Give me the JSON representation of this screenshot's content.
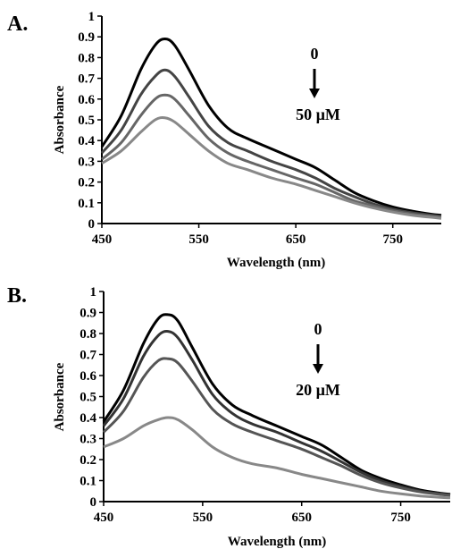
{
  "chart_data": [
    {
      "type": "line",
      "panel_label": "A.",
      "xlabel": "Wavelength (nm)",
      "ylabel": "Absorbance",
      "xlim": [
        450,
        800
      ],
      "ylim": [
        0,
        1
      ],
      "x_ticks": [
        "450",
        "550",
        "650",
        "750"
      ],
      "y_ticks": [
        "0",
        "0.1",
        "0.2",
        "0.3",
        "0.4",
        "0.5",
        "0.6",
        "0.7",
        "0.8",
        "0.9",
        "1"
      ],
      "grid": false,
      "annotation_top": "0",
      "annotation_bottom": "50 µM",
      "x": [
        450,
        470,
        490,
        505,
        515,
        525,
        540,
        560,
        580,
        600,
        625,
        650,
        670,
        690,
        710,
        730,
        750,
        770,
        790,
        800
      ],
      "series": [
        {
          "color": "#000000",
          "values": [
            0.37,
            0.52,
            0.74,
            0.86,
            0.89,
            0.86,
            0.74,
            0.57,
            0.46,
            0.41,
            0.36,
            0.31,
            0.27,
            0.21,
            0.15,
            0.11,
            0.08,
            0.06,
            0.045,
            0.04
          ]
        },
        {
          "color": "#444444",
          "values": [
            0.34,
            0.45,
            0.62,
            0.71,
            0.74,
            0.71,
            0.61,
            0.47,
            0.39,
            0.35,
            0.3,
            0.26,
            0.22,
            0.17,
            0.13,
            0.095,
            0.07,
            0.052,
            0.04,
            0.035
          ]
        },
        {
          "color": "#666666",
          "values": [
            0.31,
            0.39,
            0.52,
            0.6,
            0.62,
            0.6,
            0.52,
            0.41,
            0.34,
            0.3,
            0.26,
            0.22,
            0.19,
            0.15,
            0.11,
            0.085,
            0.062,
            0.046,
            0.035,
            0.03
          ]
        },
        {
          "color": "#888888",
          "values": [
            0.29,
            0.35,
            0.44,
            0.5,
            0.51,
            0.49,
            0.43,
            0.35,
            0.29,
            0.26,
            0.22,
            0.19,
            0.16,
            0.13,
            0.1,
            0.075,
            0.055,
            0.04,
            0.03,
            0.025
          ]
        }
      ]
    },
    {
      "type": "line",
      "panel_label": "B.",
      "xlabel": "Wavelength (nm)",
      "ylabel": "Absorbance",
      "xlim": [
        450,
        800
      ],
      "ylim": [
        0,
        1
      ],
      "x_ticks": [
        "450",
        "550",
        "650",
        "750"
      ],
      "y_ticks": [
        "0",
        "0.1",
        "0.2",
        "0.3",
        "0.4",
        "0.5",
        "0.6",
        "0.7",
        "0.8",
        "0.9",
        "1"
      ],
      "grid": false,
      "annotation_top": "0",
      "annotation_bottom": "20 µM",
      "x": [
        450,
        470,
        490,
        505,
        515,
        525,
        540,
        560,
        580,
        600,
        625,
        650,
        670,
        690,
        710,
        730,
        750,
        770,
        790,
        800
      ],
      "series": [
        {
          "color": "#000000",
          "values": [
            0.38,
            0.53,
            0.75,
            0.87,
            0.89,
            0.86,
            0.73,
            0.56,
            0.46,
            0.41,
            0.36,
            0.31,
            0.27,
            0.21,
            0.15,
            0.11,
            0.08,
            0.055,
            0.04,
            0.035
          ]
        },
        {
          "color": "#333333",
          "values": [
            0.36,
            0.49,
            0.69,
            0.79,
            0.81,
            0.78,
            0.67,
            0.51,
            0.42,
            0.37,
            0.33,
            0.28,
            0.24,
            0.19,
            0.14,
            0.1,
            0.072,
            0.05,
            0.037,
            0.032
          ]
        },
        {
          "color": "#555555",
          "values": [
            0.33,
            0.43,
            0.59,
            0.67,
            0.68,
            0.66,
            0.57,
            0.44,
            0.37,
            0.33,
            0.29,
            0.25,
            0.21,
            0.17,
            0.125,
            0.09,
            0.065,
            0.046,
            0.034,
            0.03
          ]
        },
        {
          "color": "#888888",
          "values": [
            0.26,
            0.3,
            0.36,
            0.39,
            0.4,
            0.39,
            0.34,
            0.26,
            0.21,
            0.18,
            0.16,
            0.13,
            0.11,
            0.09,
            0.07,
            0.05,
            0.037,
            0.027,
            0.02,
            0.018
          ]
        }
      ]
    }
  ]
}
